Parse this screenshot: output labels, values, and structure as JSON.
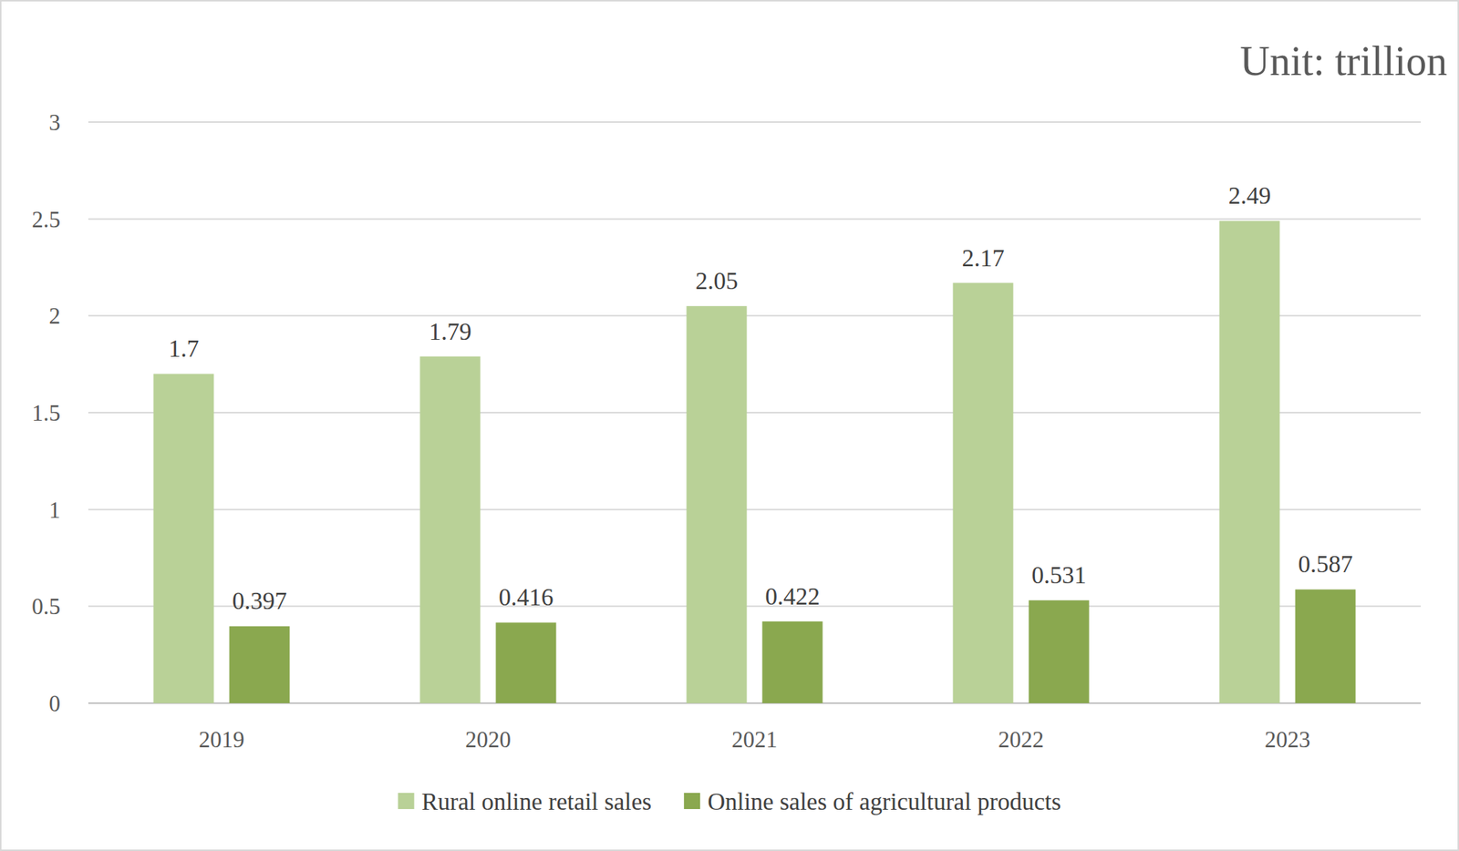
{
  "chart_data": {
    "type": "bar",
    "y_label": "Unit: trillion",
    "categories": [
      "2019",
      "2020",
      "2021",
      "2022",
      "2023"
    ],
    "series": [
      {
        "name": "Rural online retail sales",
        "color": "#b9d197",
        "values": [
          1.7,
          1.79,
          2.05,
          2.17,
          2.49
        ]
      },
      {
        "name": "Online sales of agricultural products",
        "color": "#8aa84f",
        "values": [
          0.397,
          0.416,
          0.422,
          0.531,
          0.587
        ]
      }
    ],
    "ylim": [
      0,
      3
    ],
    "yticks": [
      0,
      0.5,
      1,
      1.5,
      2,
      2.5,
      3
    ],
    "grid": true,
    "data_labels": true,
    "legend": "bottom"
  }
}
